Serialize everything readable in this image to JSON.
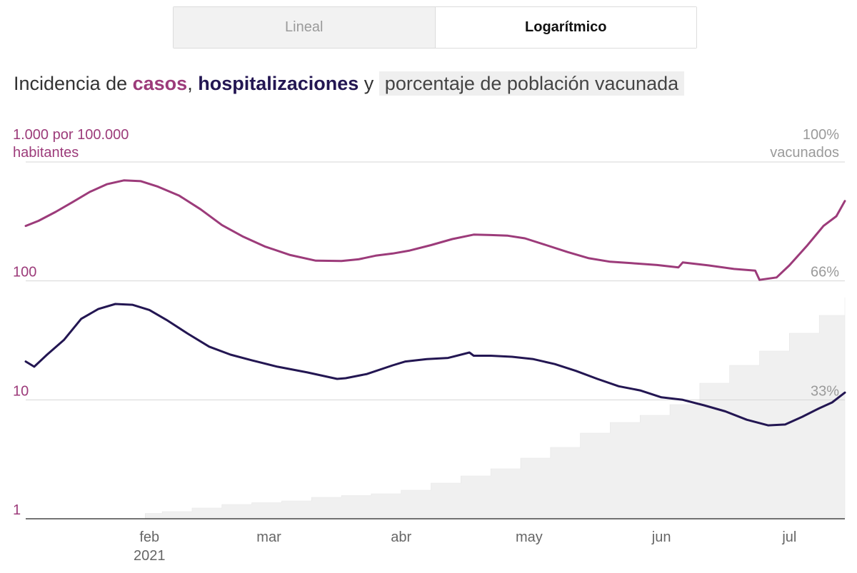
{
  "toggle": {
    "lineal_label": "Lineal",
    "log_label": "Logarítmico",
    "active": "Logarítmico"
  },
  "heading": {
    "prefix": "Incidencia de ",
    "casos": "casos",
    "comma": ",",
    "hospitalizaciones": "hospitalizaciones",
    "y": " y ",
    "vacunada": "porcentaje de población vacunada"
  },
  "colors": {
    "casos": "#9c3b7a",
    "hospitalizaciones": "#231652",
    "vacunada_fill": "#f0f0f0",
    "grid": "#d6d6d6",
    "right_axis_text": "#9a9a9a",
    "axis_text": "#666666"
  },
  "chart_data": {
    "type": "line",
    "y_scale": "log",
    "ylim": [
      1,
      1000
    ],
    "y_ticks": [
      {
        "value": 1000,
        "label": "1.000 por 100.000",
        "label2": "habitantes"
      },
      {
        "value": 100,
        "label": "100"
      },
      {
        "value": 10,
        "label": "10"
      },
      {
        "value": 1,
        "label": "1"
      }
    ],
    "y2_ticks": [
      {
        "value": 100,
        "label": "100%",
        "label2": "vacunados"
      },
      {
        "value": 66,
        "label": "66%"
      },
      {
        "value": 33,
        "label": "33%"
      }
    ],
    "x_range": [
      "2021-01-03",
      "2021-07-14"
    ],
    "x_ticks": [
      {
        "date": "2021-02-01",
        "label": "feb",
        "label2": "2021"
      },
      {
        "date": "2021-03-01",
        "label": "mar"
      },
      {
        "date": "2021-04-01",
        "label": "abr"
      },
      {
        "date": "2021-05-01",
        "label": "may"
      },
      {
        "date": "2021-06-01",
        "label": "jun"
      },
      {
        "date": "2021-07-01",
        "label": "jul"
      }
    ],
    "series": [
      {
        "name": "casos",
        "axis": "left",
        "x": [
          "2021-01-03",
          "2021-01-06",
          "2021-01-10",
          "2021-01-14",
          "2021-01-18",
          "2021-01-22",
          "2021-01-26",
          "2021-01-30",
          "2021-02-03",
          "2021-02-08",
          "2021-02-13",
          "2021-02-18",
          "2021-02-23",
          "2021-02-28",
          "2021-03-06",
          "2021-03-12",
          "2021-03-18",
          "2021-03-22",
          "2021-03-26",
          "2021-03-30",
          "2021-04-03",
          "2021-04-08",
          "2021-04-13",
          "2021-04-18",
          "2021-04-22",
          "2021-04-26",
          "2021-04-30",
          "2021-05-05",
          "2021-05-10",
          "2021-05-15",
          "2021-05-20",
          "2021-05-25",
          "2021-05-31",
          "2021-06-05",
          "2021-06-06",
          "2021-06-12",
          "2021-06-18",
          "2021-06-23",
          "2021-06-24",
          "2021-06-28",
          "2021-07-01",
          "2021-07-05",
          "2021-07-09",
          "2021-07-12",
          "2021-07-14"
        ],
        "values": [
          290,
          320,
          380,
          460,
          560,
          650,
          700,
          690,
          620,
          520,
          400,
          295,
          235,
          195,
          165,
          148,
          147,
          152,
          163,
          170,
          180,
          200,
          225,
          245,
          243,
          240,
          228,
          200,
          175,
          155,
          145,
          141,
          136,
          130,
          143,
          135,
          126,
          122,
          102,
          107,
          135,
          195,
          290,
          350,
          470
        ]
      },
      {
        "name": "hospitalizaciones",
        "axis": "left",
        "x": [
          "2021-01-03",
          "2021-01-05",
          "2021-01-08",
          "2021-01-12",
          "2021-01-16",
          "2021-01-20",
          "2021-01-24",
          "2021-01-28",
          "2021-02-01",
          "2021-02-05",
          "2021-02-10",
          "2021-02-15",
          "2021-02-20",
          "2021-02-25",
          "2021-03-03",
          "2021-03-10",
          "2021-03-17",
          "2021-03-19",
          "2021-03-24",
          "2021-03-30",
          "2021-04-02",
          "2021-04-07",
          "2021-04-12",
          "2021-04-17",
          "2021-04-18",
          "2021-04-22",
          "2021-04-27",
          "2021-05-02",
          "2021-05-07",
          "2021-05-12",
          "2021-05-17",
          "2021-05-22",
          "2021-05-27",
          "2021-06-01",
          "2021-06-06",
          "2021-06-11",
          "2021-06-16",
          "2021-06-21",
          "2021-06-26",
          "2021-06-30",
          "2021-07-04",
          "2021-07-08",
          "2021-07-11",
          "2021-07-14"
        ],
        "values": [
          21,
          19,
          24,
          32,
          48,
          58,
          64,
          63,
          57,
          47,
          36,
          28,
          24,
          21.5,
          19,
          17,
          15,
          15.2,
          16.5,
          19.5,
          21,
          22,
          22.5,
          25,
          23.5,
          23.5,
          23,
          22,
          20,
          17.5,
          15,
          13,
          12,
          10.5,
          10,
          9,
          8,
          6.8,
          6.1,
          6.2,
          7.2,
          8.5,
          9.5,
          11.5
        ]
      },
      {
        "name": "porcentaje de población vacunada",
        "axis": "right",
        "type": "area-step",
        "x": [
          "2021-01-03",
          "2021-01-31",
          "2021-02-04",
          "2021-02-11",
          "2021-02-18",
          "2021-02-25",
          "2021-03-04",
          "2021-03-11",
          "2021-03-18",
          "2021-03-25",
          "2021-04-01",
          "2021-04-08",
          "2021-04-15",
          "2021-04-22",
          "2021-04-29",
          "2021-05-06",
          "2021-05-13",
          "2021-05-20",
          "2021-05-27",
          "2021-06-03",
          "2021-06-10",
          "2021-06-17",
          "2021-06-24",
          "2021-07-01",
          "2021-07-08",
          "2021-07-14"
        ],
        "values": [
          0,
          1.5,
          2,
          3,
          4,
          4.5,
          5,
          6,
          6.5,
          7,
          8,
          10,
          12,
          14,
          17,
          20,
          24,
          27,
          29,
          32,
          38,
          43,
          47,
          52,
          57,
          62
        ]
      }
    ]
  }
}
